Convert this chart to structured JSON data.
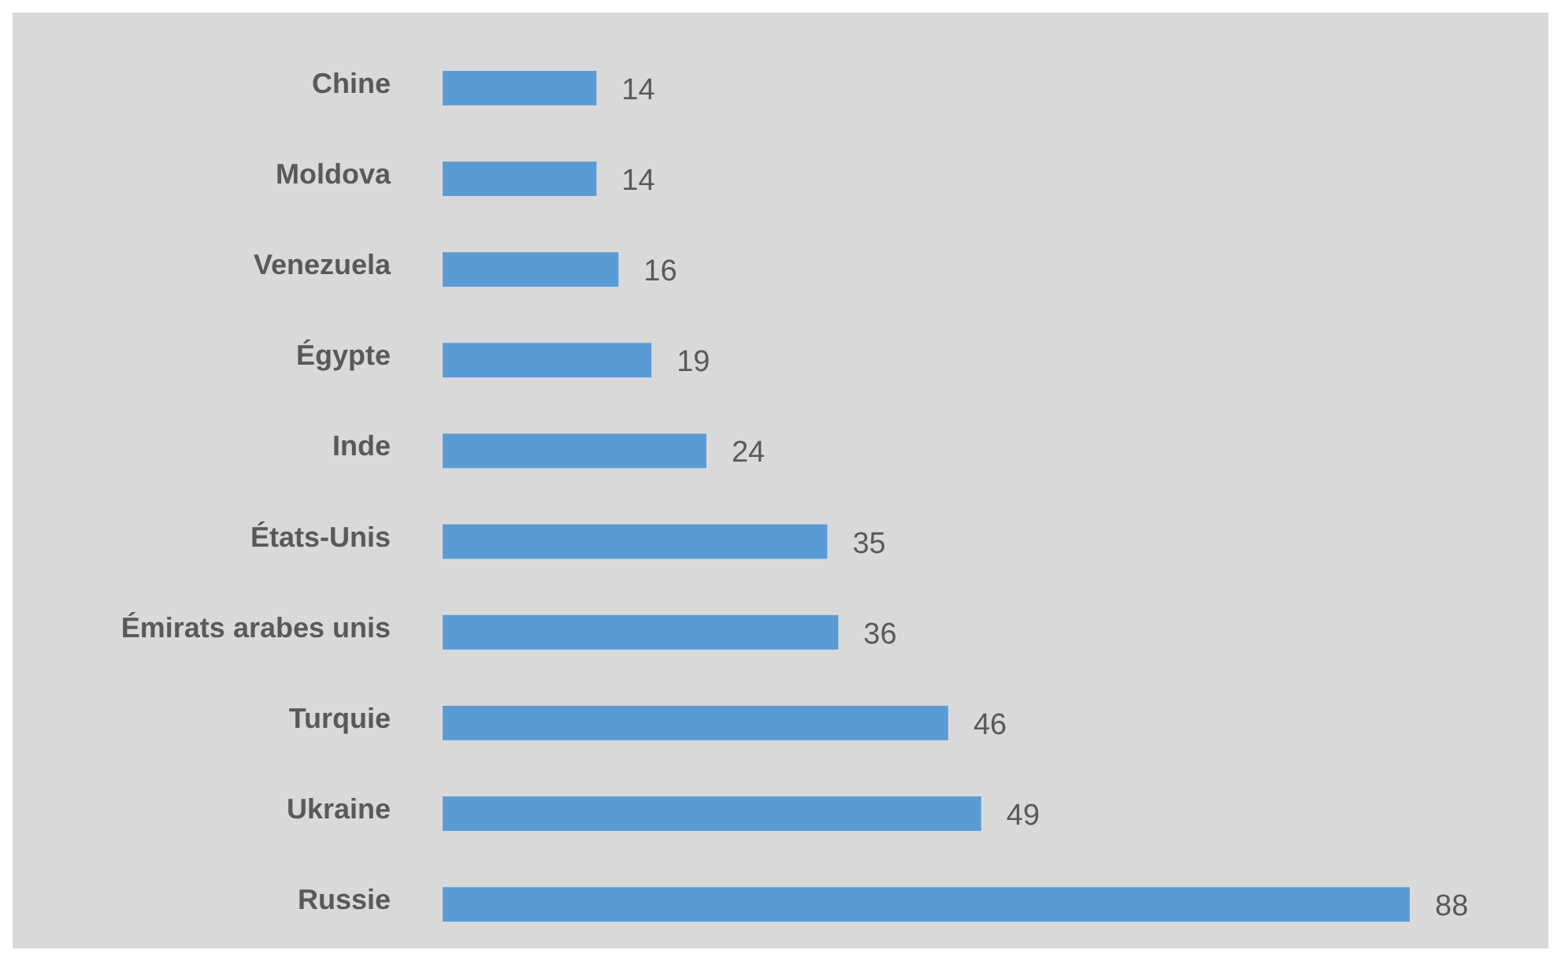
{
  "chart_data": {
    "type": "bar",
    "orientation": "horizontal",
    "categories": [
      "Chine",
      "Moldova",
      "Venezuela",
      "Égypte",
      "Inde",
      "États-Unis",
      "Émirats arabes unis",
      "Turquie",
      "Ukraine",
      "Russie"
    ],
    "values": [
      14,
      14,
      16,
      19,
      24,
      35,
      36,
      46,
      49,
      88
    ],
    "color": "#5b9bd5",
    "data_labels": true
  }
}
